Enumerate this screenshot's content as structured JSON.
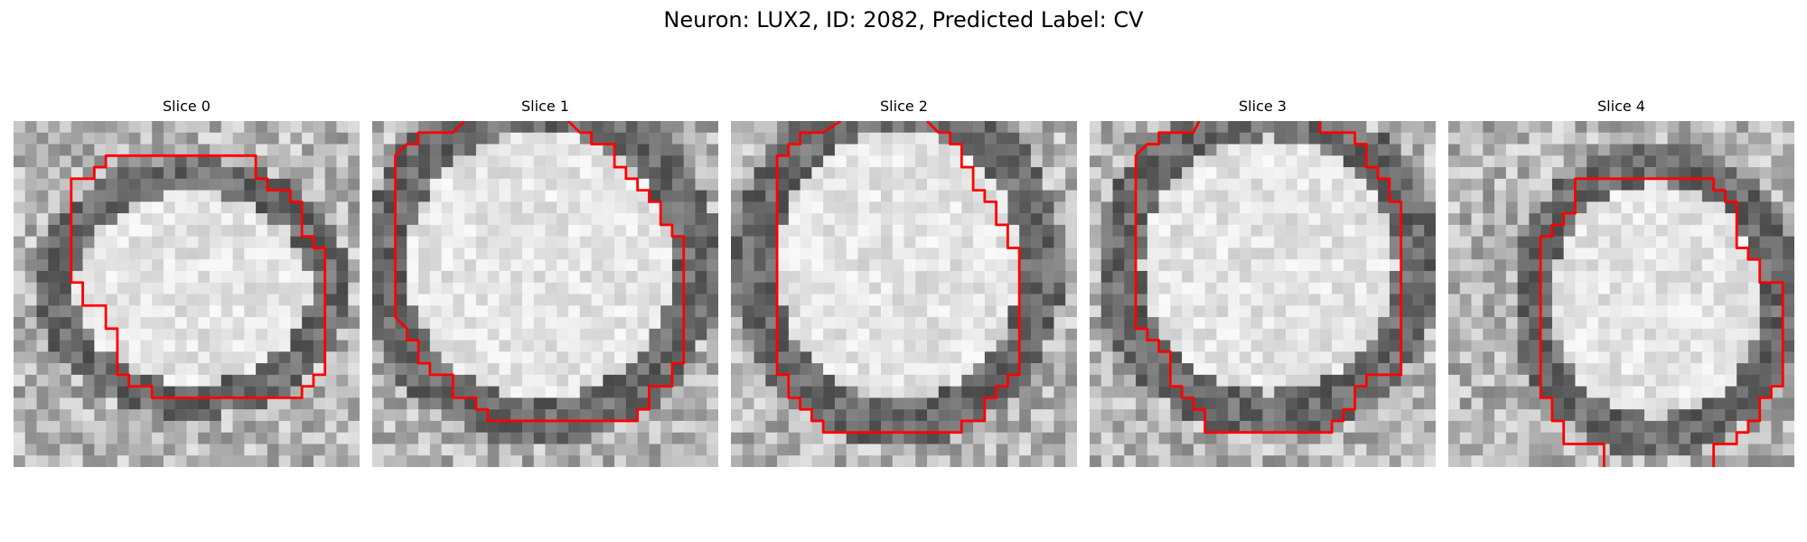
{
  "figure": {
    "title": "Neuron: LUX2, ID: 2082, Predicted Label: CV"
  },
  "panels": [
    {
      "title": "Slice 0"
    },
    {
      "title": "Slice 1"
    },
    {
      "title": "Slice 2"
    },
    {
      "title": "Slice 3"
    },
    {
      "title": "Slice 4"
    }
  ],
  "colors": {
    "contour": "#ff0000",
    "colormap": "grayscale"
  }
}
